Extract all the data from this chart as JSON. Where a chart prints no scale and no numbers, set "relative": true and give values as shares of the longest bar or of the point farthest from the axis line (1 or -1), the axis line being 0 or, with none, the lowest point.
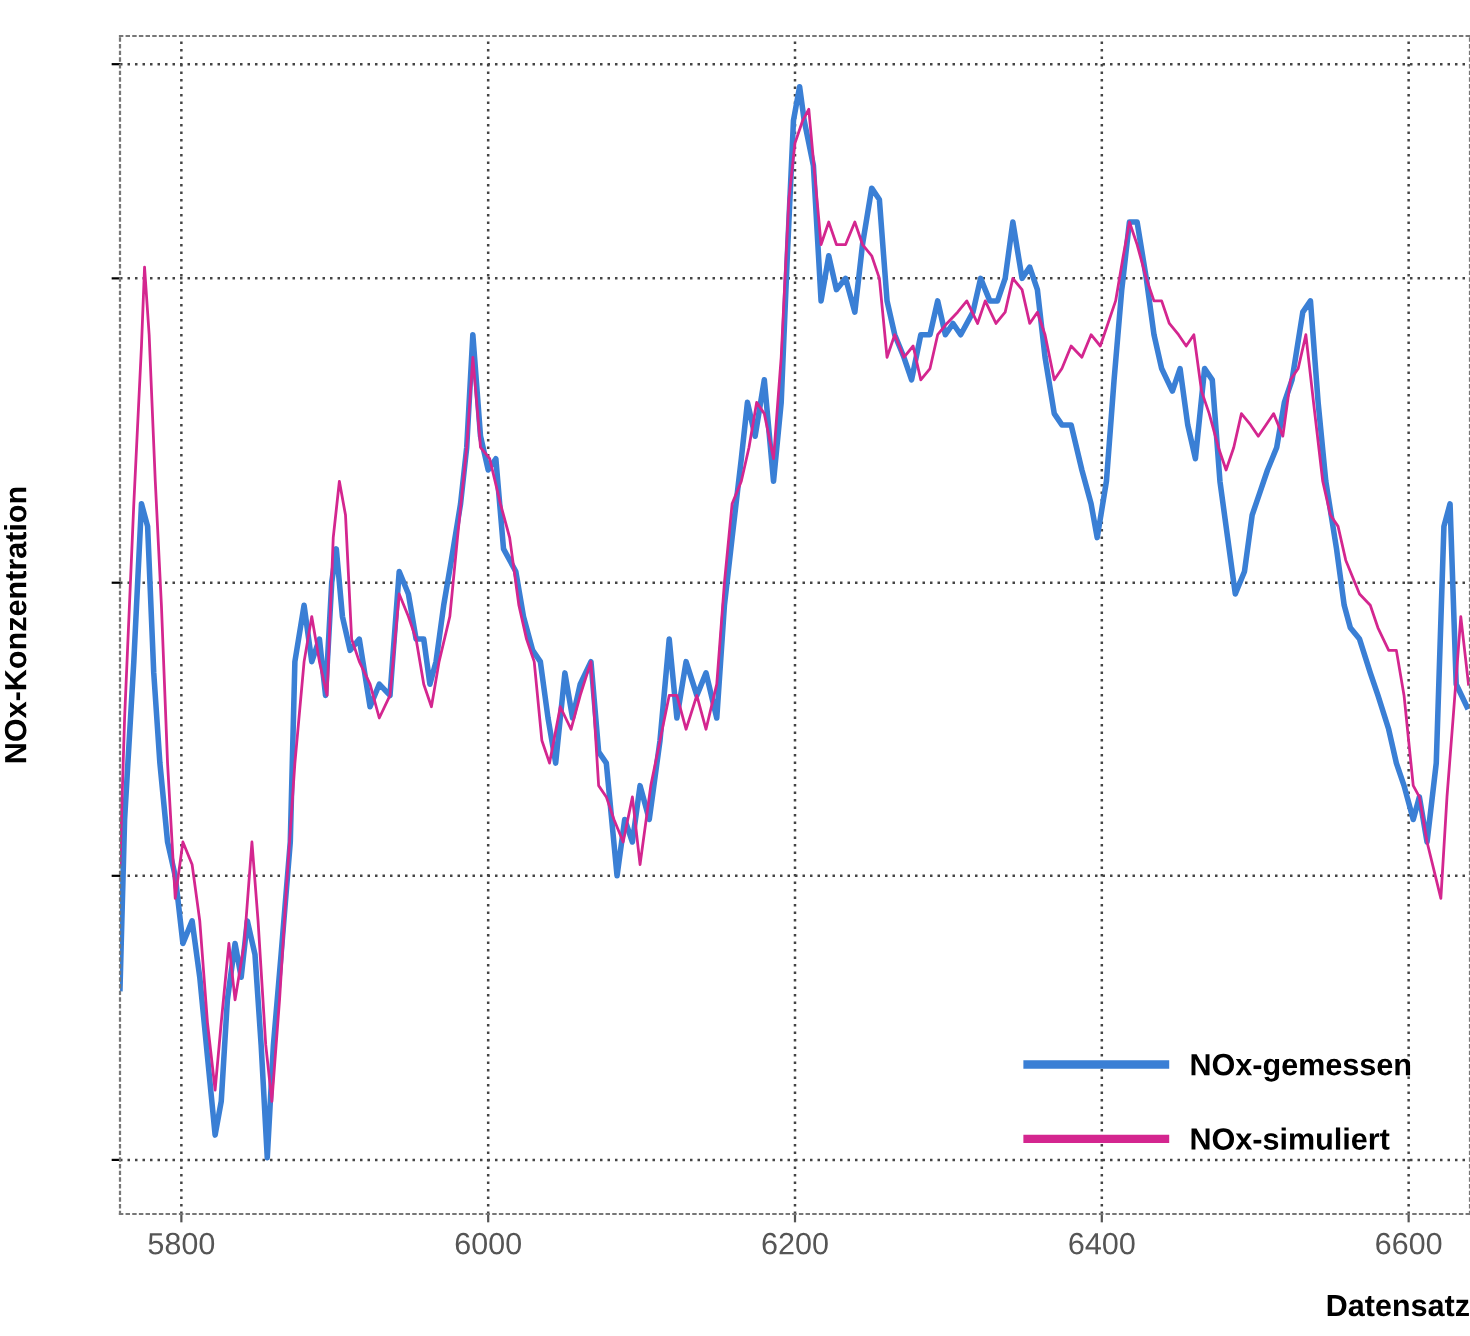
{
  "chart_data": {
    "type": "line",
    "relative": true,
    "xlabel": "Datensatz",
    "ylabel": "NOx-Konzentration",
    "xlim": [
      5760,
      6640
    ],
    "xticks": [
      5800,
      6000,
      6200,
      6400,
      6600
    ],
    "grid": true,
    "legend": "bottom right",
    "line_style": "solid",
    "marker": "none",
    "series": [
      {
        "name": "NOx-gemessen",
        "color": "#3a7fd5",
        "x": [
          5760,
          5763,
          5769,
          5774,
          5778,
          5782,
          5786,
          5791,
          5796,
          5801,
          5807,
          5812,
          5817,
          5822,
          5826,
          5830,
          5835,
          5839,
          5843,
          5848,
          5852,
          5856,
          5860,
          5865,
          5871,
          5874,
          5880,
          5885,
          5890,
          5894,
          5898,
          5901,
          5905,
          5910,
          5916,
          5923,
          5929,
          5936,
          5942,
          5948,
          5953,
          5958,
          5962,
          5966,
          5971,
          5976,
          5982,
          5986,
          5990,
          5995,
          6000,
          6005,
          6010,
          6018,
          6023,
          6029,
          6034,
          6039,
          6044,
          6050,
          6055,
          6060,
          6067,
          6072,
          6077,
          6084,
          6089,
          6094,
          6099,
          6105,
          6112,
          6118,
          6123,
          6129,
          6136,
          6142,
          6149,
          6154,
          6159,
          6165,
          6169,
          6174,
          6180,
          6186,
          6191,
          6195,
          6199,
          6203,
          6206,
          6212,
          6217,
          6222,
          6227,
          6233,
          6239,
          6244,
          6250,
          6255,
          6260,
          6265,
          6271,
          6276,
          6282,
          6288,
          6293,
          6298,
          6303,
          6308,
          6316,
          6321,
          6327,
          6332,
          6337,
          6342,
          6348,
          6353,
          6358,
          6363,
          6369,
          6374,
          6380,
          6387,
          6393,
          6397,
          6403,
          6408,
          6413,
          6418,
          6423,
          6429,
          6434,
          6439,
          6446,
          6451,
          6456,
          6461,
          6467,
          6472,
          6477,
          6482,
          6487,
          6493,
          6498,
          6503,
          6508,
          6514,
          6519,
          6524,
          6531,
          6536,
          6541,
          6546,
          6553,
          6558,
          6562,
          6568,
          6575,
          6580,
          6587,
          6592,
          6597,
          6603,
          6607,
          6612,
          6618,
          6623,
          6627,
          6631,
          6638
        ],
        "values": [
          0.2,
          0.35,
          0.49,
          0.63,
          0.61,
          0.48,
          0.4,
          0.33,
          0.3,
          0.24,
          0.26,
          0.21,
          0.14,
          0.07,
          0.1,
          0.19,
          0.24,
          0.21,
          0.26,
          0.23,
          0.15,
          0.05,
          0.15,
          0.23,
          0.33,
          0.49,
          0.54,
          0.49,
          0.51,
          0.46,
          0.56,
          0.59,
          0.53,
          0.5,
          0.51,
          0.45,
          0.47,
          0.46,
          0.57,
          0.55,
          0.51,
          0.51,
          0.47,
          0.49,
          0.54,
          0.58,
          0.63,
          0.68,
          0.78,
          0.69,
          0.66,
          0.67,
          0.59,
          0.57,
          0.53,
          0.5,
          0.49,
          0.44,
          0.4,
          0.48,
          0.44,
          0.47,
          0.49,
          0.41,
          0.4,
          0.3,
          0.35,
          0.33,
          0.38,
          0.35,
          0.42,
          0.51,
          0.44,
          0.49,
          0.46,
          0.48,
          0.44,
          0.54,
          0.6,
          0.67,
          0.72,
          0.69,
          0.74,
          0.65,
          0.72,
          0.85,
          0.97,
          1.0,
          0.97,
          0.93,
          0.81,
          0.85,
          0.82,
          0.83,
          0.8,
          0.86,
          0.91,
          0.9,
          0.81,
          0.78,
          0.76,
          0.74,
          0.78,
          0.78,
          0.81,
          0.78,
          0.79,
          0.78,
          0.8,
          0.83,
          0.81,
          0.81,
          0.83,
          0.88,
          0.83,
          0.84,
          0.82,
          0.76,
          0.71,
          0.7,
          0.7,
          0.66,
          0.63,
          0.6,
          0.65,
          0.74,
          0.82,
          0.88,
          0.88,
          0.83,
          0.78,
          0.75,
          0.73,
          0.75,
          0.7,
          0.67,
          0.75,
          0.74,
          0.65,
          0.6,
          0.55,
          0.57,
          0.62,
          0.64,
          0.66,
          0.68,
          0.72,
          0.74,
          0.8,
          0.81,
          0.72,
          0.65,
          0.59,
          0.54,
          0.52,
          0.51,
          0.48,
          0.46,
          0.43,
          0.4,
          0.38,
          0.35,
          0.37,
          0.33,
          0.4,
          0.61,
          0.63,
          0.47,
          0.45
        ]
      },
      {
        "name": "NOx-simuliert",
        "color": "#d4268f",
        "x": [
          5760,
          5763,
          5769,
          5774,
          5776,
          5779,
          5783,
          5787,
          5791,
          5796,
          5801,
          5807,
          5812,
          5817,
          5822,
          5826,
          5831,
          5835,
          5841,
          5846,
          5850,
          5855,
          5859,
          5864,
          5869,
          5874,
          5880,
          5885,
          5890,
          5895,
          5899,
          5903,
          5907,
          5911,
          5916,
          5923,
          5929,
          5936,
          5942,
          5948,
          5953,
          5958,
          5963,
          5968,
          5975,
          5980,
          5986,
          5990,
          5995,
          6001,
          6008,
          6014,
          6020,
          6025,
          6030,
          6035,
          6040,
          6047,
          6054,
          6060,
          6067,
          6072,
          6077,
          6082,
          6088,
          6094,
          6099,
          6106,
          6112,
          6118,
          6123,
          6129,
          6136,
          6142,
          6149,
          6154,
          6159,
          6165,
          6170,
          6175,
          6180,
          6186,
          6191,
          6196,
          6200,
          6205,
          6209,
          6213,
          6217,
          6222,
          6227,
          6233,
          6239,
          6244,
          6250,
          6255,
          6260,
          6265,
          6271,
          6277,
          6282,
          6288,
          6293,
          6299,
          6306,
          6312,
          6319,
          6324,
          6331,
          6337,
          6342,
          6348,
          6353,
          6358,
          6363,
          6369,
          6374,
          6380,
          6387,
          6393,
          6399,
          6404,
          6409,
          6414,
          6418,
          6423,
          6429,
          6434,
          6439,
          6444,
          6450,
          6455,
          6460,
          6465,
          6470,
          6476,
          6481,
          6486,
          6491,
          6497,
          6502,
          6507,
          6512,
          6518,
          6523,
          6528,
          6533,
          6538,
          6544,
          6549,
          6554,
          6559,
          6565,
          6568,
          6575,
          6580,
          6587,
          6592,
          6597,
          6603,
          6607,
          6612,
          6621,
          6625,
          6629,
          6634,
          6639
        ],
        "values": [
          0.31,
          0.44,
          0.63,
          0.77,
          0.84,
          0.78,
          0.65,
          0.54,
          0.4,
          0.28,
          0.33,
          0.31,
          0.26,
          0.17,
          0.11,
          0.17,
          0.24,
          0.19,
          0.24,
          0.33,
          0.26,
          0.15,
          0.1,
          0.19,
          0.3,
          0.4,
          0.49,
          0.53,
          0.49,
          0.46,
          0.6,
          0.65,
          0.62,
          0.51,
          0.49,
          0.47,
          0.44,
          0.46,
          0.55,
          0.53,
          0.51,
          0.47,
          0.45,
          0.49,
          0.53,
          0.6,
          0.68,
          0.76,
          0.68,
          0.67,
          0.63,
          0.6,
          0.54,
          0.51,
          0.49,
          0.42,
          0.4,
          0.45,
          0.43,
          0.46,
          0.49,
          0.38,
          0.37,
          0.35,
          0.33,
          0.37,
          0.31,
          0.38,
          0.42,
          0.46,
          0.46,
          0.43,
          0.46,
          0.43,
          0.47,
          0.56,
          0.63,
          0.65,
          0.68,
          0.72,
          0.71,
          0.67,
          0.76,
          0.9,
          0.95,
          0.97,
          0.98,
          0.92,
          0.86,
          0.88,
          0.86,
          0.86,
          0.88,
          0.86,
          0.85,
          0.83,
          0.76,
          0.78,
          0.76,
          0.77,
          0.74,
          0.75,
          0.78,
          0.79,
          0.8,
          0.81,
          0.79,
          0.81,
          0.79,
          0.8,
          0.83,
          0.82,
          0.79,
          0.8,
          0.78,
          0.74,
          0.75,
          0.77,
          0.76,
          0.78,
          0.77,
          0.79,
          0.81,
          0.85,
          0.88,
          0.86,
          0.83,
          0.81,
          0.81,
          0.79,
          0.78,
          0.77,
          0.78,
          0.73,
          0.71,
          0.68,
          0.66,
          0.68,
          0.71,
          0.7,
          0.69,
          0.7,
          0.71,
          0.69,
          0.74,
          0.75,
          0.78,
          0.72,
          0.65,
          0.62,
          0.61,
          0.58,
          0.56,
          0.55,
          0.54,
          0.52,
          0.5,
          0.5,
          0.46,
          0.38,
          0.37,
          0.33,
          0.28,
          0.37,
          0.44,
          0.53,
          0.47
        ]
      }
    ]
  }
}
